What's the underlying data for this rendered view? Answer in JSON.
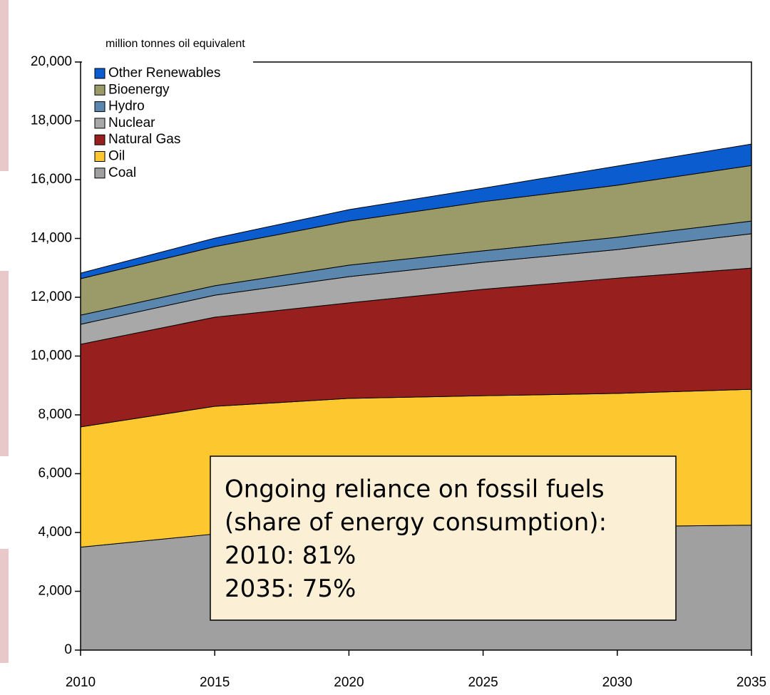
{
  "chart_data": {
    "type": "stacked_area",
    "y_axis_label": "million tonnes oil equivalent",
    "x": [
      2010,
      2015,
      2020,
      2025,
      2030,
      2035
    ],
    "xlim": [
      2010,
      2035
    ],
    "xticks": [
      2010,
      2015,
      2020,
      2025,
      2030,
      2035
    ],
    "ylim": [
      0,
      20000
    ],
    "yticks": [
      0,
      {
        "value": 2000,
        "label": "2,000"
      },
      {
        "value": 4000,
        "label": "4,000"
      },
      {
        "value": 6000,
        "label": "6,000"
      },
      {
        "value": 8000,
        "label": "8,000"
      },
      {
        "value": 10000,
        "label": "10,000"
      },
      {
        "value": 12000,
        "label": "12,000"
      },
      {
        "value": 14000,
        "label": "14,000"
      },
      {
        "value": 16000,
        "label": "16,000"
      },
      {
        "value": 18000,
        "label": "18,000"
      },
      {
        "value": 20000,
        "label": "20,000"
      }
    ],
    "legend": "top-left",
    "series": [
      {
        "name": "Coal",
        "color": "#a0a0a0",
        "values": [
          3500,
          3950,
          4100,
          4150,
          4200,
          4250
        ]
      },
      {
        "name": "Oil",
        "color": "#fdc82f",
        "values": [
          4090,
          4340,
          4460,
          4500,
          4530,
          4620
        ]
      },
      {
        "name": "Natural Gas",
        "color": "#97201f",
        "values": [
          2810,
          3030,
          3250,
          3620,
          3920,
          4120
        ]
      },
      {
        "name": "Nuclear",
        "color": "#a8a8a8",
        "values": [
          680,
          750,
          890,
          920,
          970,
          1170
        ]
      },
      {
        "name": "Hydro",
        "color": "#5b86ad",
        "values": [
          310,
          320,
          390,
          390,
          420,
          430
        ]
      },
      {
        "name": "Bioenergy",
        "color": "#9b9b69",
        "values": [
          1240,
          1330,
          1500,
          1670,
          1770,
          1890
        ]
      },
      {
        "name": "Other Renewables",
        "color": "#0b5ccf",
        "values": [
          190,
          290,
          390,
          460,
          650,
          730
        ]
      }
    ],
    "annotation": [
      "Ongoing reliance on fossil fuels",
      "(share of energy consumption):",
      "2010: 81%",
      "2035: 75%"
    ]
  }
}
